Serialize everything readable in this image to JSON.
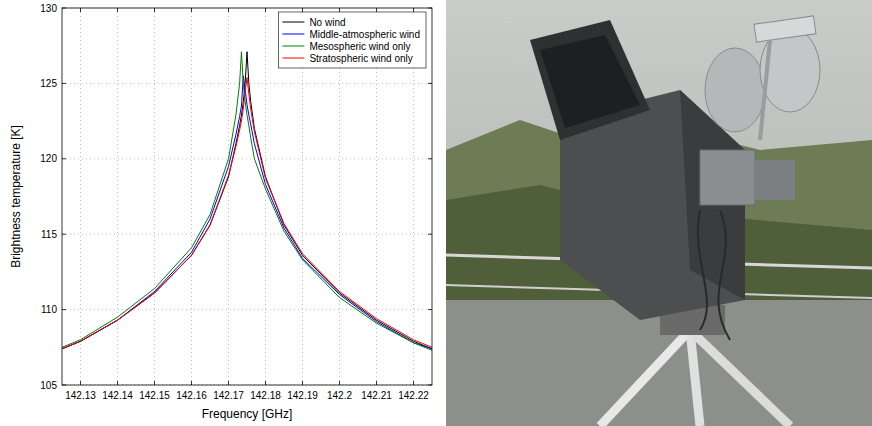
{
  "chart_data": {
    "type": "line",
    "x_label": "Frequency [GHz]",
    "y_label": "Brightness temperature [K]",
    "x": [
      142.125,
      142.13,
      142.14,
      142.15,
      142.16,
      142.165,
      142.17,
      142.172,
      142.173,
      142.1735,
      142.174,
      142.1745,
      142.175,
      142.1755,
      142.176,
      142.177,
      142.18,
      142.185,
      142.19,
      142.2,
      142.21,
      142.22,
      142.225
    ],
    "series": [
      {
        "name": "No wind",
        "color": "#000000",
        "values": [
          107.4,
          107.9,
          109.3,
          111.1,
          113.6,
          115.6,
          118.8,
          121.0,
          122.2,
          122.9,
          123.8,
          125.0,
          127.1,
          125.0,
          123.8,
          122.0,
          118.8,
          115.6,
          113.6,
          111.1,
          109.3,
          107.9,
          107.4
        ]
      },
      {
        "name": "Middle-atmospheric wind",
        "color": "#0000ff",
        "values": [
          107.4,
          107.9,
          109.3,
          111.2,
          113.8,
          116.0,
          119.5,
          121.6,
          122.8,
          123.5,
          125.5,
          124.6,
          123.6,
          122.9,
          122.3,
          121.0,
          118.3,
          115.4,
          113.4,
          111.0,
          109.2,
          107.8,
          107.4
        ]
      },
      {
        "name": "Mesospheric wind only",
        "color": "#008000",
        "values": [
          107.5,
          108.0,
          109.5,
          111.4,
          114.1,
          116.3,
          120.0,
          122.9,
          125.0,
          127.1,
          125.0,
          123.8,
          122.9,
          122.2,
          121.4,
          120.0,
          118.0,
          115.2,
          113.3,
          110.8,
          109.1,
          107.8,
          107.3
        ]
      },
      {
        "name": "Stratospheric wind only",
        "color": "#ff0000",
        "values": [
          107.4,
          107.9,
          109.3,
          111.1,
          113.6,
          115.6,
          118.9,
          120.8,
          121.9,
          122.5,
          123.3,
          124.4,
          125.4,
          124.3,
          123.3,
          121.8,
          118.7,
          115.7,
          113.7,
          111.2,
          109.4,
          108.0,
          107.5
        ]
      }
    ],
    "xlim": [
      142.125,
      142.225
    ],
    "xticks": [
      142.13,
      142.14,
      142.15,
      142.16,
      142.17,
      142.18,
      142.19,
      142.2,
      142.21,
      142.22
    ],
    "ylim": [
      105,
      130
    ],
    "yticks": [
      105,
      110,
      115,
      120,
      125,
      130
    ],
    "grid": true,
    "legend": "northeast"
  }
}
